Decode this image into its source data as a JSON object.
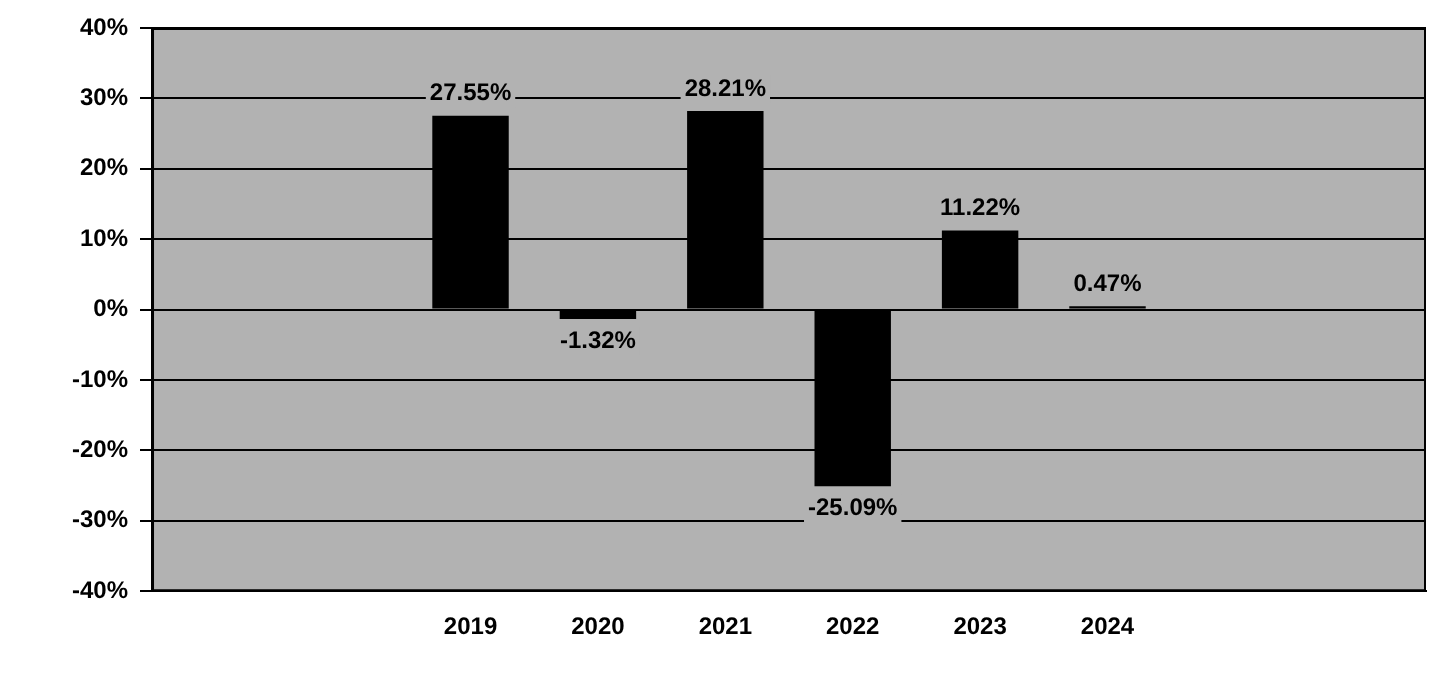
{
  "chart_data": {
    "type": "bar",
    "categories": [
      null,
      null,
      "2019",
      "2020",
      "2021",
      "2022",
      "2023",
      "2024",
      null,
      null
    ],
    "values": [
      null,
      null,
      27.55,
      -1.32,
      28.21,
      -25.09,
      11.22,
      0.47,
      null,
      null
    ],
    "value_labels": [
      null,
      null,
      "27.55%",
      "-1.32%",
      "28.21%",
      "-25.09%",
      "11.22%",
      "0.47%",
      null,
      null
    ],
    "color": "#000000",
    "ylim": [
      -40,
      40
    ],
    "yticks": [
      {
        "value": -40,
        "label": "-40%"
      },
      {
        "value": -30,
        "label": "-30%"
      },
      {
        "value": -20,
        "label": "-20%"
      },
      {
        "value": -10,
        "label": "-10%"
      },
      {
        "value": 0,
        "label": "0%"
      },
      {
        "value": 10,
        "label": "10%"
      },
      {
        "value": 20,
        "label": "20%"
      },
      {
        "value": 30,
        "label": "30%"
      },
      {
        "value": 40,
        "label": "40%"
      }
    ],
    "grid": "y",
    "legend": false
  }
}
